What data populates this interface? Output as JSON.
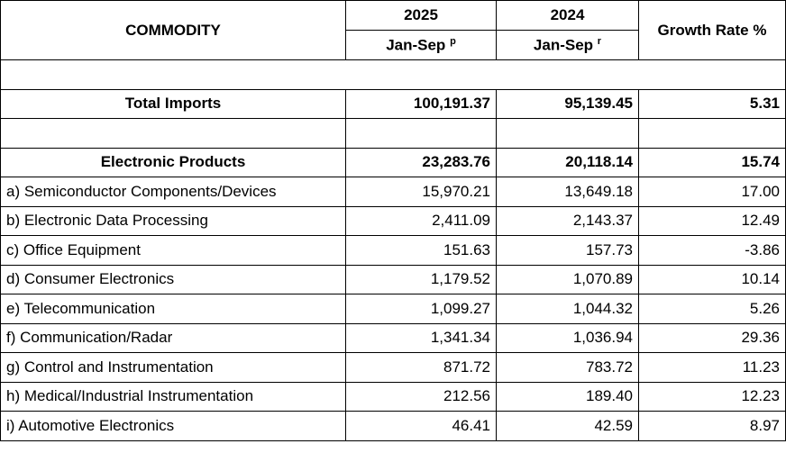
{
  "header": {
    "commodity": "COMMODITY",
    "year1": "2025",
    "year2": "2024",
    "period1": "Jan-Sep",
    "period1_mark": "p",
    "period2": "Jan-Sep",
    "period2_mark": "r",
    "growth": "Growth Rate %"
  },
  "total": {
    "label": "Total Imports",
    "v2025": "100,191.37",
    "v2024": "95,139.45",
    "growth": "5.31"
  },
  "group": {
    "label": "Electronic Products",
    "v2025": "23,283.76",
    "v2024": "20,118.14",
    "growth": "15.74"
  },
  "rows": [
    {
      "label": "a) Semiconductor Components/Devices",
      "v2025": "15,970.21",
      "v2024": "13,649.18",
      "growth": "17.00"
    },
    {
      "label": "b) Electronic Data Processing",
      "v2025": "2,411.09",
      "v2024": "2,143.37",
      "growth": "12.49"
    },
    {
      "label": "c) Office Equipment",
      "v2025": "151.63",
      "v2024": "157.73",
      "growth": "-3.86"
    },
    {
      "label": "d) Consumer Electronics",
      "v2025": "1,179.52",
      "v2024": "1,070.89",
      "growth": "10.14"
    },
    {
      "label": "e) Telecommunication",
      "v2025": "1,099.27",
      "v2024": "1,044.32",
      "growth": "5.26"
    },
    {
      "label": "f) Communication/Radar",
      "v2025": "1,341.34",
      "v2024": "1,036.94",
      "growth": "29.36"
    },
    {
      "label": "g) Control and Instrumentation",
      "v2025": "871.72",
      "v2024": "783.72",
      "growth": "11.23"
    },
    {
      "label": "h) Medical/Industrial Instrumentation",
      "v2025": "212.56",
      "v2024": "189.40",
      "growth": "12.23"
    },
    {
      "label": "i) Automotive Electronics",
      "v2025": "46.41",
      "v2024": "42.59",
      "growth": "8.97"
    }
  ]
}
